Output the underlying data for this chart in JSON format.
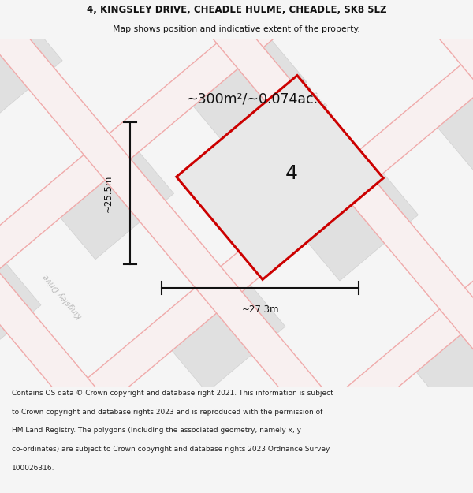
{
  "title_line1": "4, KINGSLEY DRIVE, CHEADLE HULME, CHEADLE, SK8 5LZ",
  "title_line2": "Map shows position and indicative extent of the property.",
  "area_text": "~300m²/~0.074ac.",
  "label_width": "~27.3m",
  "label_height": "~25.5m",
  "property_number": "4",
  "footer_lines": [
    "Contains OS data © Crown copyright and database right 2021. This information is subject",
    "to Crown copyright and database rights 2023 and is reproduced with the permission of",
    "HM Land Registry. The polygons (including the associated geometry, namely x, y",
    "co-ordinates) are subject to Crown copyright and database rights 2023 Ordnance Survey",
    "100026316."
  ],
  "bg_color": "#f5f5f5",
  "map_bg": "#eeeeee",
  "parcel_fc": "#e0e0e0",
  "parcel_ec": "#d0d0d0",
  "road_ec": "#f0aaaa",
  "road_fc": "#f8f0f0",
  "plot_outline": "#cc0000",
  "plot_fill": "#e8e8e8",
  "dim_color": "#111111",
  "road_label_color": "#bbbbbb",
  "title_color": "#111111",
  "footer_color": "#222222",
  "title_fontsize": 8.5,
  "subtitle_fontsize": 7.8,
  "area_fontsize": 12.5,
  "number_fontsize": 18,
  "dim_fontsize": 8.5,
  "footer_fontsize": 6.5,
  "road_label_fontsize": 7.0
}
